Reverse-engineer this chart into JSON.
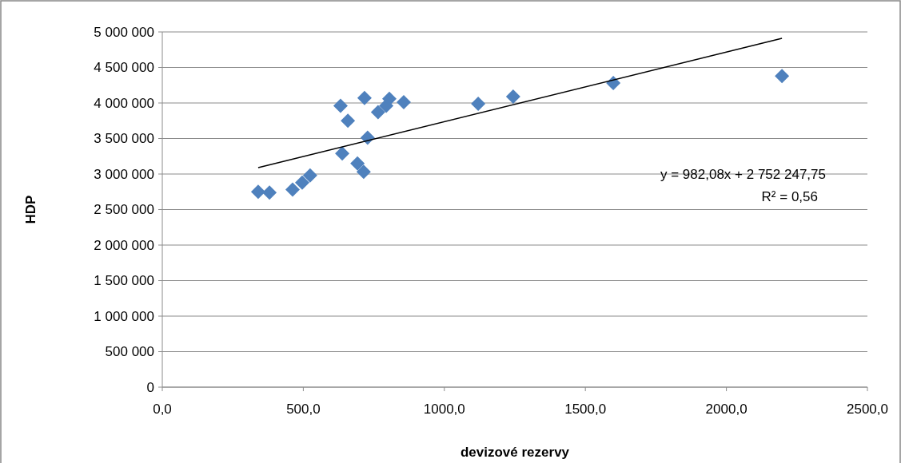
{
  "chart_data": {
    "type": "scatter",
    "xlabel": "devizové rezervy",
    "ylabel": "HDP",
    "marker": "diamond",
    "grid": "y",
    "xlim": [
      0,
      2500
    ],
    "xticks": [
      {
        "value": 0,
        "label": "0,0"
      },
      {
        "value": 500,
        "label": "500,0"
      },
      {
        "value": 1000,
        "label": "1000,0"
      },
      {
        "value": 1500,
        "label": "1500,0"
      },
      {
        "value": 2000,
        "label": "2000,0"
      },
      {
        "value": 2500,
        "label": "2500,0"
      }
    ],
    "ylim": [
      0,
      5000000
    ],
    "yticks": [
      0,
      {
        "value": 500000,
        "label": "500 000"
      },
      {
        "value": 1000000,
        "label": "1 000 000"
      },
      {
        "value": 1500000,
        "label": "1 500 000"
      },
      {
        "value": 2000000,
        "label": "2 000 000"
      },
      {
        "value": 2500000,
        "label": "2 500 000"
      },
      {
        "value": 3000000,
        "label": "3 000 000"
      },
      {
        "value": 3500000,
        "label": "3 500 000"
      },
      {
        "value": 4000000,
        "label": "4 000 000"
      },
      {
        "value": 4500000,
        "label": "4 500 000"
      },
      {
        "value": 5000000,
        "label": "5 000 000"
      }
    ],
    "series": [
      {
        "color": "#4f81bd",
        "x": [
          340,
          380,
          462,
          496,
          524,
          632,
          638,
          658,
          692,
          714,
          717,
          728,
          765,
          794,
          805,
          856,
          1120,
          1244,
          1599,
          2197
        ],
        "values": [
          2750000,
          2740000,
          2780000,
          2880000,
          2980000,
          3960000,
          3290000,
          3750000,
          3150000,
          3030000,
          4070000,
          3510000,
          3870000,
          3960000,
          4060000,
          4010000,
          3990000,
          4090000,
          4280000,
          4380000
        ]
      },
      {
        "type": "line",
        "marker": "none",
        "color": "#000000",
        "x": [
          340,
          2197
        ],
        "values": [
          3090000,
          4910000
        ]
      }
    ],
    "annotations": [
      "y = 982,08x + 2 752 247,75",
      "R² = 0,56"
    ]
  }
}
